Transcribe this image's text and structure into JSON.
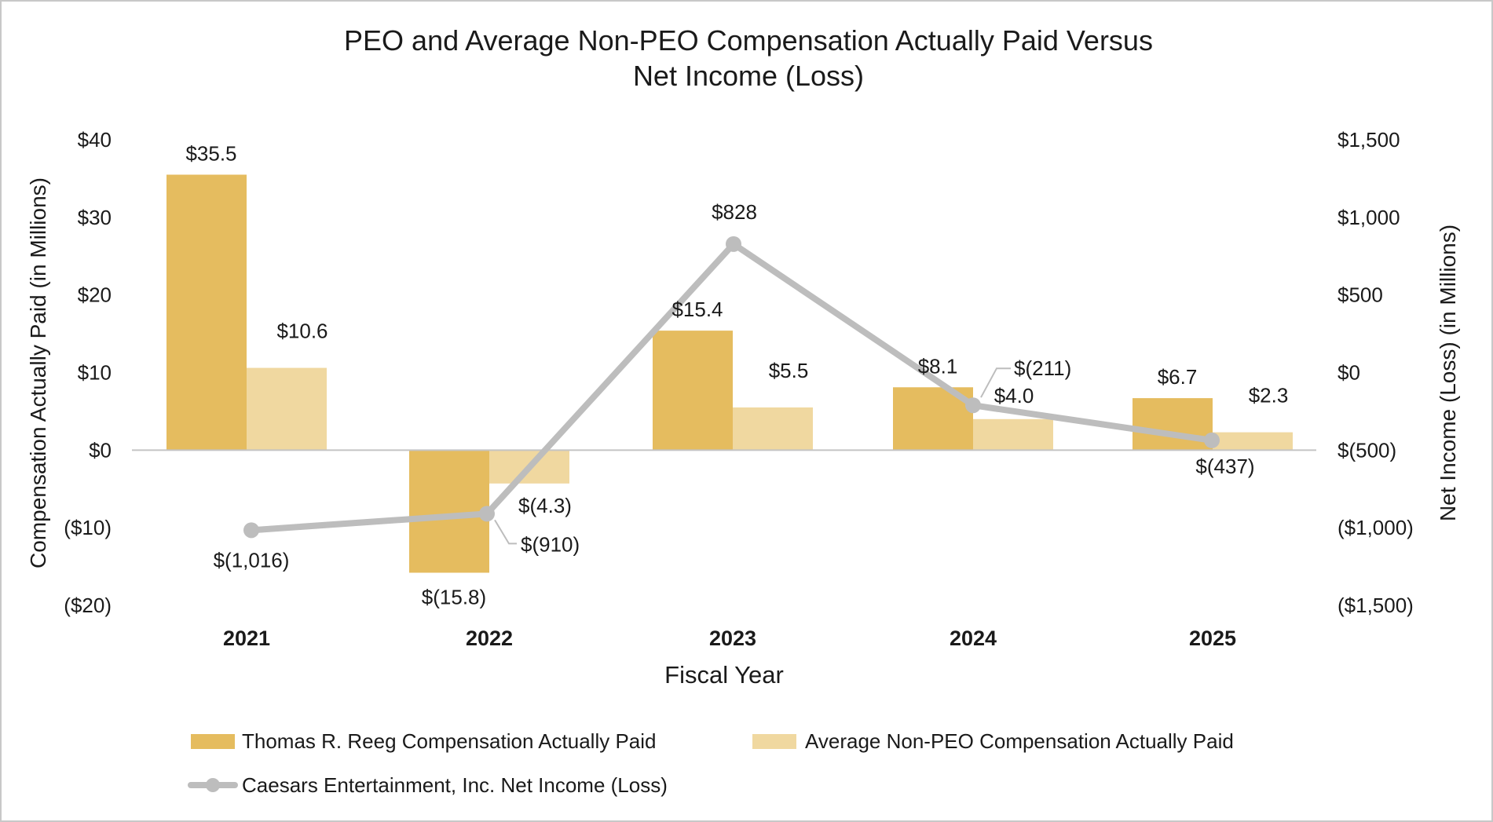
{
  "chart_data": {
    "type": "bar",
    "title_lines": [
      "PEO and Average Non-PEO Compensation Actually Paid Versus",
      "Net Income (Loss)"
    ],
    "xlabel": "Fiscal Year",
    "ylabel": "Compensation Actually Paid (in Millions)",
    "y2label": "Net Income (Loss) (in Millions)",
    "categories": [
      "2021",
      "2022",
      "2023",
      "2024",
      "2025"
    ],
    "ylim": [
      -20,
      40
    ],
    "y2lim": [
      -1500,
      1500
    ],
    "yticks": [
      40,
      30,
      20,
      10,
      0,
      -10,
      -20
    ],
    "ytick_labels": [
      "$40",
      "$30",
      "$20",
      "$10",
      "$0",
      "($10)",
      "($20)"
    ],
    "y2ticks": [
      1500,
      1000,
      500,
      0,
      -500,
      -1000,
      -1500
    ],
    "y2tick_labels": [
      "$1,500",
      "$1,000",
      "$500",
      "$0",
      "$(500)",
      "($1,000)",
      "($1,500)"
    ],
    "series": [
      {
        "name": "Thomas R. Reeg Compensation Actually Paid",
        "kind": "bar",
        "axis": "left",
        "color": "#E5BC5F",
        "values": [
          35.5,
          -15.8,
          15.4,
          8.1,
          6.7
        ],
        "labels": [
          "$35.5",
          "$(15.8)",
          "$15.4",
          "$8.1",
          "$6.7"
        ]
      },
      {
        "name": "Average Non-PEO Compensation Actually Paid",
        "kind": "bar",
        "axis": "left",
        "color": "#F0D8A0",
        "values": [
          10.6,
          -4.3,
          5.5,
          4.0,
          2.3
        ],
        "labels": [
          "$10.6",
          "$(4.3)",
          "$5.5",
          "$4.0",
          "$2.3"
        ]
      },
      {
        "name": "Caesars Entertainment, Inc. Net Income (Loss)",
        "kind": "line",
        "axis": "right",
        "color": "#BDBDBD",
        "values": [
          -1016,
          -910,
          828,
          -211,
          -437
        ],
        "labels": [
          "$(1,016)",
          "$(910)",
          "$828",
          "$(211)",
          "$(437)"
        ]
      }
    ],
    "legend_position": "bottom"
  }
}
